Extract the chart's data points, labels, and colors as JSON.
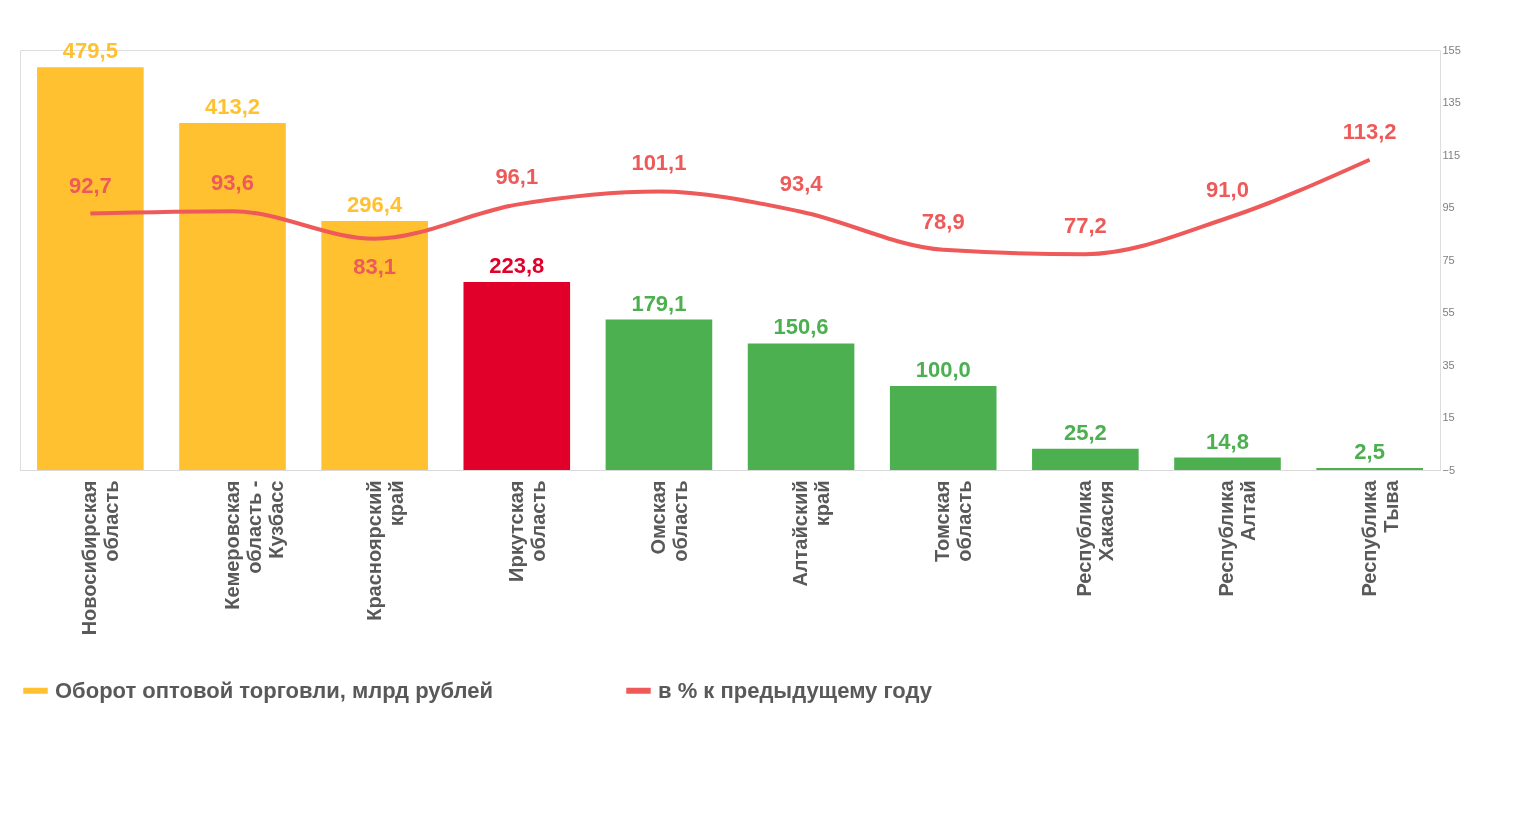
{
  "chart_data": {
    "type": "bar",
    "categories": [
      "Новосибирская область",
      "Кемеровская область - Кузбасс",
      "Красноярский край",
      "Иркутская область",
      "Омская область",
      "Алтайский край",
      "Томская область",
      "Республика Хакасия",
      "Республика Алтай",
      "Республика Тыва"
    ],
    "series": [
      {
        "name": "Оборот оптовой торговли, млрд рублей",
        "color": "#FFC12F",
        "colors": [
          "#FFC12F",
          "#FFC12F",
          "#FFC12F",
          "#E0002A",
          "#4CAF50",
          "#4CAF50",
          "#4CAF50",
          "#4CAF50",
          "#4CAF50",
          "#4CAF50"
        ],
        "values": [
          479.5,
          413.2,
          296.4,
          223.8,
          179.1,
          150.6,
          100.0,
          25.2,
          14.8,
          2.5
        ],
        "value_labels": [
          "479,5",
          "413,2",
          "296,4",
          "223,8",
          "179,1",
          "150,6",
          "100,0",
          "25,2",
          "14,8",
          "2,5"
        ]
      },
      {
        "name": "в % к предыдущему году",
        "type": "line",
        "axis": "y2",
        "color": "#EE5A5A",
        "values": [
          92.7,
          93.6,
          83.1,
          96.1,
          101.1,
          93.4,
          78.9,
          77.2,
          91.0,
          113.2
        ],
        "value_labels": [
          "92,7",
          "93,6",
          "83,1",
          "96,1",
          "101,1",
          "93,4",
          "78,9",
          "77,2",
          "91,0",
          "113,2"
        ]
      }
    ],
    "ylim": [
      0,
      500
    ],
    "y2lim": [
      -5,
      155
    ],
    "y2ticks": [
      -5,
      15,
      35,
      55,
      75,
      95,
      115,
      135,
      155
    ],
    "legend": "bottom"
  }
}
